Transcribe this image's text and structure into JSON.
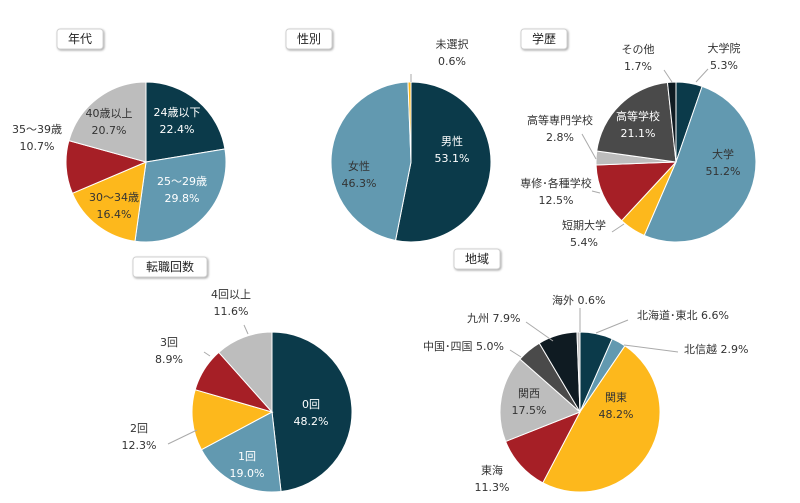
{
  "colors": {
    "navy": "#0b3a4a",
    "steel": "#6299b0",
    "amber": "#fdb81c",
    "crimson": "#a61f26",
    "silver": "#bdbdbd",
    "charcoal": "#4a4a4a",
    "black": "#0f1b22",
    "leader": "#aaaaaa"
  },
  "chart_data": [
    {
      "type": "pie",
      "title": "年代",
      "slices": [
        {
          "label": "24歳以下",
          "value": 22.4,
          "display": "22.4%",
          "color": "navy",
          "label_color": "#ffffff"
        },
        {
          "label": "25～29歳",
          "value": 29.8,
          "display": "29.8%",
          "color": "steel",
          "label_color": "#ffffff"
        },
        {
          "label": "30～34歳",
          "value": 16.4,
          "display": "16.4%",
          "color": "amber",
          "label_color": "#333333"
        },
        {
          "label": "35～39歳",
          "value": 10.7,
          "display": "10.7%",
          "color": "crimson",
          "label_color": "#333333"
        },
        {
          "label": "40歳以上",
          "value": 20.7,
          "display": "20.7%",
          "color": "silver",
          "label_color": "#333333"
        }
      ]
    },
    {
      "type": "pie",
      "title": "性別",
      "slices": [
        {
          "label": "男性",
          "value": 53.1,
          "display": "53.1%",
          "color": "navy",
          "label_color": "#ffffff"
        },
        {
          "label": "女性",
          "value": 46.3,
          "display": "46.3%",
          "color": "steel",
          "label_color": "#333333"
        },
        {
          "label": "未選択",
          "value": 0.6,
          "display": "0.6%",
          "color": "amber",
          "label_color": "#333333"
        }
      ]
    },
    {
      "type": "pie",
      "title": "学歴",
      "slices": [
        {
          "label": "大学院",
          "value": 5.3,
          "display": "5.3%",
          "color": "navy",
          "label_color": "#333333"
        },
        {
          "label": "大学",
          "value": 51.2,
          "display": "51.2%",
          "color": "steel",
          "label_color": "#333333"
        },
        {
          "label": "短期大学",
          "value": 5.4,
          "display": "5.4%",
          "color": "amber",
          "label_color": "#333333"
        },
        {
          "label": "専修･各種学校",
          "value": 12.5,
          "display": "12.5%",
          "color": "crimson",
          "label_color": "#333333"
        },
        {
          "label": "高等専門学校",
          "value": 2.8,
          "display": "2.8%",
          "color": "silver",
          "label_color": "#333333"
        },
        {
          "label": "高等学校",
          "value": 21.1,
          "display": "21.1%",
          "color": "charcoal",
          "label_color": "#ffffff"
        },
        {
          "label": "その他",
          "value": 1.7,
          "display": "1.7%",
          "color": "black",
          "label_color": "#333333"
        }
      ]
    },
    {
      "type": "pie",
      "title": "転職回数",
      "slices": [
        {
          "label": "0回",
          "value": 48.2,
          "display": "48.2%",
          "color": "navy",
          "label_color": "#ffffff"
        },
        {
          "label": "1回",
          "value": 19.0,
          "display": "19.0%",
          "color": "steel",
          "label_color": "#ffffff"
        },
        {
          "label": "2回",
          "value": 12.3,
          "display": "12.3%",
          "color": "amber",
          "label_color": "#333333"
        },
        {
          "label": "3回",
          "value": 8.9,
          "display": "8.9%",
          "color": "crimson",
          "label_color": "#333333"
        },
        {
          "label": "4回以上",
          "value": 11.6,
          "display": "11.6%",
          "color": "silver",
          "label_color": "#333333"
        }
      ]
    },
    {
      "type": "pie",
      "title": "地域",
      "slices": [
        {
          "label": "北海道･東北",
          "value": 6.6,
          "display": "6.6%",
          "color": "navy",
          "label_color": "#333333"
        },
        {
          "label": "北信越",
          "value": 2.9,
          "display": "2.9%",
          "color": "steel",
          "label_color": "#333333"
        },
        {
          "label": "関東",
          "value": 48.2,
          "display": "48.2%",
          "color": "amber",
          "label_color": "#333333"
        },
        {
          "label": "東海",
          "value": 11.3,
          "display": "11.3%",
          "color": "crimson",
          "label_color": "#333333"
        },
        {
          "label": "関西",
          "value": 17.5,
          "display": "17.5%",
          "color": "silver",
          "label_color": "#333333"
        },
        {
          "label": "中国･四国",
          "value": 5.0,
          "display": "5.0%",
          "color": "charcoal",
          "label_color": "#333333"
        },
        {
          "label": "九州",
          "value": 7.9,
          "display": "7.9%",
          "color": "black",
          "label_color": "#333333"
        },
        {
          "label": "海外",
          "value": 0.6,
          "display": "0.6%",
          "color": "silver",
          "label_color": "#333333"
        }
      ]
    }
  ]
}
